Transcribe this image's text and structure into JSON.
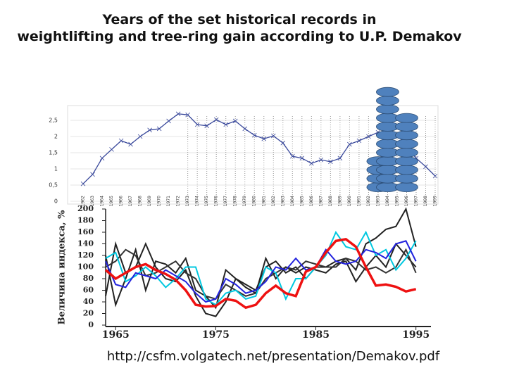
{
  "title": "Years of the set historical records in weightlifting and tree-ring gain according to U.P. Demakov",
  "url": "http://csfm.volgatech.net/presentation/Demakov.pdf",
  "chart_data": [
    {
      "type": "line",
      "color": "#3b4a9c",
      "categories": [
        "1962",
        "1963",
        "1964",
        "1965",
        "1966",
        "1967",
        "1968",
        "1969",
        "1970",
        "1971",
        "1972",
        "1973",
        "1974",
        "1975",
        "1976",
        "1977",
        "1978",
        "1979",
        "1980",
        "1981",
        "1982",
        "1983",
        "1984",
        "1985",
        "1986",
        "1987",
        "1988",
        "1989",
        "1990",
        "1991",
        "1992",
        "1993",
        "1994",
        "1995",
        "1996",
        "1997",
        "1998",
        "1999"
      ],
      "values": [
        0.54,
        0.83,
        1.33,
        1.6,
        1.87,
        1.76,
        2.0,
        2.2,
        2.24,
        2.48,
        2.7,
        2.67,
        2.37,
        2.33,
        2.52,
        2.37,
        2.48,
        2.24,
        2.04,
        1.93,
        2.02,
        1.8,
        1.39,
        1.33,
        1.17,
        1.28,
        1.22,
        1.33,
        1.76,
        1.87,
        2.0,
        2.13,
        2.15,
        2.02,
        1.76,
        1.33,
        1.07,
        0.78
      ],
      "ylim": [
        0,
        3
      ],
      "yticks": [
        0,
        {
          "value": 0.5,
          "label": "0,5"
        },
        1,
        {
          "value": 1.5,
          "label": "1,5"
        },
        2,
        {
          "value": 2.5,
          "label": "2,5"
        }
      ],
      "grid": true,
      "records": {
        "x": [
          "1993",
          "1994",
          "1996"
        ],
        "counts": [
          4,
          12,
          9
        ],
        "color": "#4f81bd"
      }
    },
    {
      "type": "line",
      "ylabel": "Величина индекса, %",
      "x": [
        1964,
        1965,
        1966,
        1967,
        1968,
        1969,
        1970,
        1971,
        1972,
        1973,
        1974,
        1975,
        1976,
        1977,
        1978,
        1979,
        1980,
        1981,
        1982,
        1983,
        1984,
        1985,
        1986,
        1987,
        1988,
        1989,
        1990,
        1991,
        1992,
        1993,
        1994,
        1995
      ],
      "xlim": [
        1964,
        1996.5
      ],
      "xticks": [
        1965,
        1975,
        1985,
        1995
      ],
      "ylim": [
        0,
        200
      ],
      "yticks": [
        0,
        20,
        40,
        60,
        80,
        100,
        120,
        140,
        160,
        180,
        200
      ],
      "series": [
        {
          "color": "#222222",
          "values": [
            50,
            140,
            90,
            100,
            140,
            100,
            80,
            75,
            95,
            50,
            20,
            15,
            40,
            80,
            70,
            60,
            100,
            110,
            90,
            100,
            80,
            100,
            100,
            110,
            115,
            95,
            140,
            150,
            165,
            170,
            200,
            135
          ]
        },
        {
          "color": "#222222",
          "values": [
            120,
            35,
            80,
            130,
            60,
            110,
            105,
            90,
            115,
            60,
            50,
            30,
            95,
            80,
            65,
            55,
            115,
            80,
            100,
            90,
            100,
            95,
            90,
            105,
            110,
            75,
            100,
            120,
            100,
            140,
            120,
            100
          ]
        },
        {
          "color": "#333333",
          "values": [
            100,
            110,
            130,
            120,
            85,
            90,
            100,
            110,
            90,
            80,
            50,
            45,
            70,
            60,
            50,
            55,
            80,
            90,
            100,
            95,
            110,
            105,
            100,
            100,
            115,
            110,
            95,
            100,
            90,
            100,
            130,
            90
          ]
        },
        {
          "color": "#00c8e0",
          "values": [
            115,
            125,
            75,
            85,
            100,
            85,
            65,
            80,
            100,
            100,
            45,
            35,
            55,
            60,
            45,
            50,
            100,
            90,
            45,
            80,
            80,
            100,
            120,
            160,
            135,
            130,
            160,
            120,
            130,
            95,
            115,
            145
          ]
        },
        {
          "color": "#2222dd",
          "values": [
            110,
            70,
            65,
            90,
            85,
            80,
            95,
            85,
            75,
            55,
            40,
            45,
            80,
            70,
            55,
            60,
            75,
            100,
            95,
            115,
            95,
            100,
            130,
            110,
            105,
            110,
            130,
            125,
            115,
            140,
            145,
            110
          ]
        },
        {
          "color": "#ee1111",
          "values": [
            95,
            80,
            90,
            100,
            105,
            95,
            88,
            78,
            60,
            35,
            32,
            33,
            45,
            42,
            30,
            35,
            55,
            68,
            55,
            50,
            92,
            100,
            125,
            145,
            148,
            135,
            100,
            68,
            70,
            66,
            58,
            62
          ]
        }
      ]
    }
  ]
}
